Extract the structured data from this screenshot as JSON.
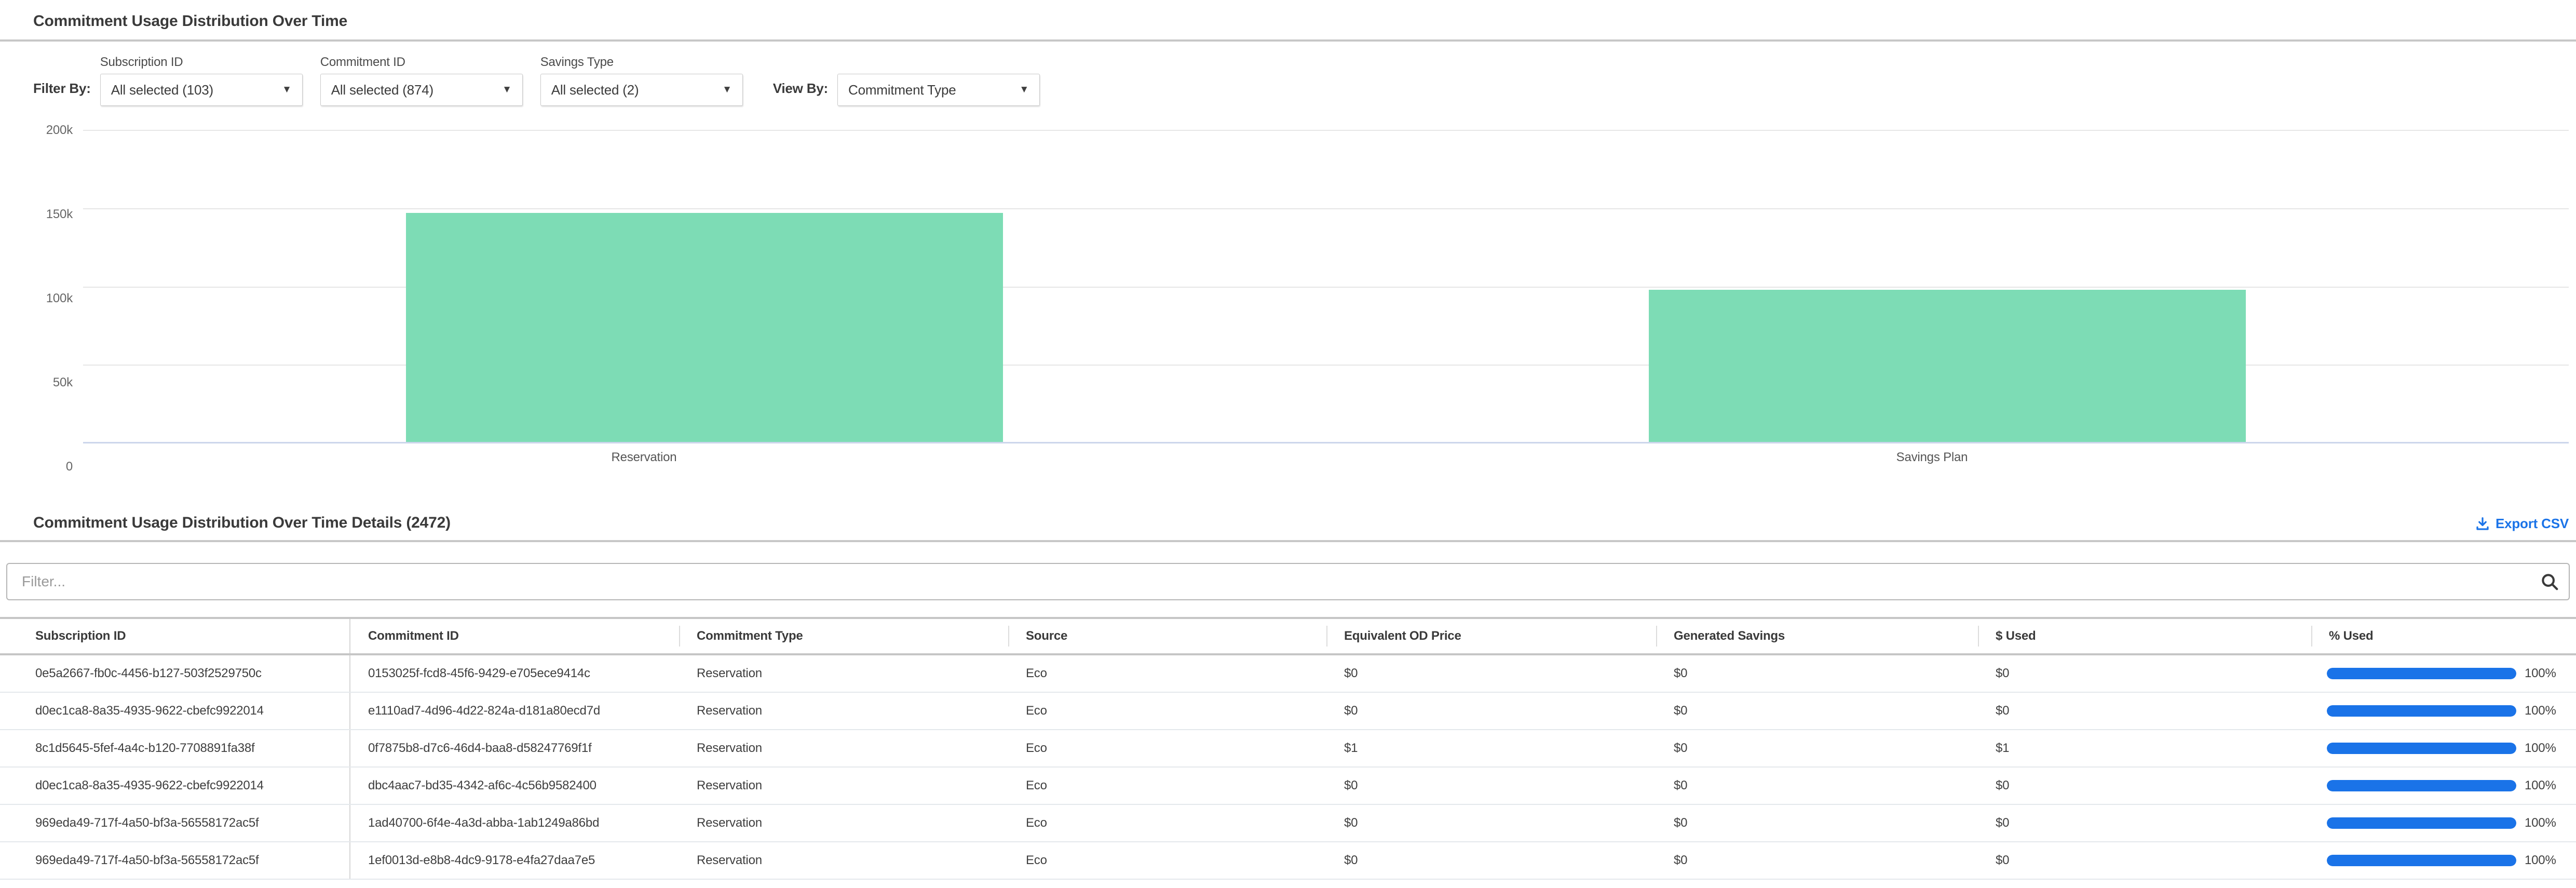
{
  "usage_section": {
    "title": "Commitment Usage Distribution Over Time",
    "filter_by_label": "Filter By:",
    "view_by_label": "View By:",
    "filters": [
      {
        "label": "Subscription ID",
        "value": "All selected (103)"
      },
      {
        "label": "Commitment ID",
        "value": "All selected (874)"
      },
      {
        "label": "Savings Type",
        "value": "All selected (2)"
      }
    ],
    "view_by": {
      "value": "Commitment Type"
    }
  },
  "chart_data": {
    "type": "bar",
    "title": "Commitment Usage Distribution Over Time",
    "categories": [
      "Reservation",
      "Savings Plan"
    ],
    "values": [
      147000,
      98000
    ],
    "xlabel": "",
    "ylabel": "",
    "ylim": [
      0,
      200000
    ],
    "ytick_labels": [
      "200k",
      "150k",
      "100k",
      "50k",
      "0"
    ],
    "grid": true,
    "legend": "none",
    "bar_color": "#7ddcb5"
  },
  "details_section": {
    "title": "Commitment Usage Distribution Over Time Details (2472)",
    "export_label": "Export CSV",
    "filter_placeholder": "Filter...",
    "table": {
      "columns": [
        "Subscription ID",
        "Commitment ID",
        "Commitment Type",
        "Source",
        "Equivalent OD Price",
        "Generated Savings",
        "$ Used",
        "% Used"
      ],
      "rows": [
        {
          "subscription_id": "0e5a2667-fb0c-4456-b127-503f2529750c",
          "commitment_id": "0153025f-fcd8-45f6-9429-e705ece9414c",
          "commitment_type": "Reservation",
          "source": "Eco",
          "equivalent_od_price": "$0",
          "generated_savings": "$0",
          "dollar_used": "$0",
          "pct_used": "100%",
          "pct_used_value": 100
        },
        {
          "subscription_id": "d0ec1ca8-8a35-4935-9622-cbefc9922014",
          "commitment_id": "e1110ad7-4d96-4d22-824a-d181a80ecd7d",
          "commitment_type": "Reservation",
          "source": "Eco",
          "equivalent_od_price": "$0",
          "generated_savings": "$0",
          "dollar_used": "$0",
          "pct_used": "100%",
          "pct_used_value": 100
        },
        {
          "subscription_id": "8c1d5645-5fef-4a4c-b120-7708891fa38f",
          "commitment_id": "0f7875b8-d7c6-46d4-baa8-d58247769f1f",
          "commitment_type": "Reservation",
          "source": "Eco",
          "equivalent_od_price": "$1",
          "generated_savings": "$0",
          "dollar_used": "$1",
          "pct_used": "100%",
          "pct_used_value": 100
        },
        {
          "subscription_id": "d0ec1ca8-8a35-4935-9622-cbefc9922014",
          "commitment_id": "dbc4aac7-bd35-4342-af6c-4c56b9582400",
          "commitment_type": "Reservation",
          "source": "Eco",
          "equivalent_od_price": "$0",
          "generated_savings": "$0",
          "dollar_used": "$0",
          "pct_used": "100%",
          "pct_used_value": 100
        },
        {
          "subscription_id": "969eda49-717f-4a50-bf3a-56558172ac5f",
          "commitment_id": "1ad40700-6f4e-4a3d-abba-1ab1249a86bd",
          "commitment_type": "Reservation",
          "source": "Eco",
          "equivalent_od_price": "$0",
          "generated_savings": "$0",
          "dollar_used": "$0",
          "pct_used": "100%",
          "pct_used_value": 100
        },
        {
          "subscription_id": "969eda49-717f-4a50-bf3a-56558172ac5f",
          "commitment_id": "1ef0013d-e8b8-4dc9-9178-e4fa27daa7e5",
          "commitment_type": "Reservation",
          "source": "Eco",
          "equivalent_od_price": "$0",
          "generated_savings": "$0",
          "dollar_used": "$0",
          "pct_used": "100%",
          "pct_used_value": 100
        }
      ]
    }
  },
  "colors": {
    "accent_blue": "#1a73e8",
    "bar_green": "#7ddcb5",
    "axis_line": "#ccd6eb"
  }
}
